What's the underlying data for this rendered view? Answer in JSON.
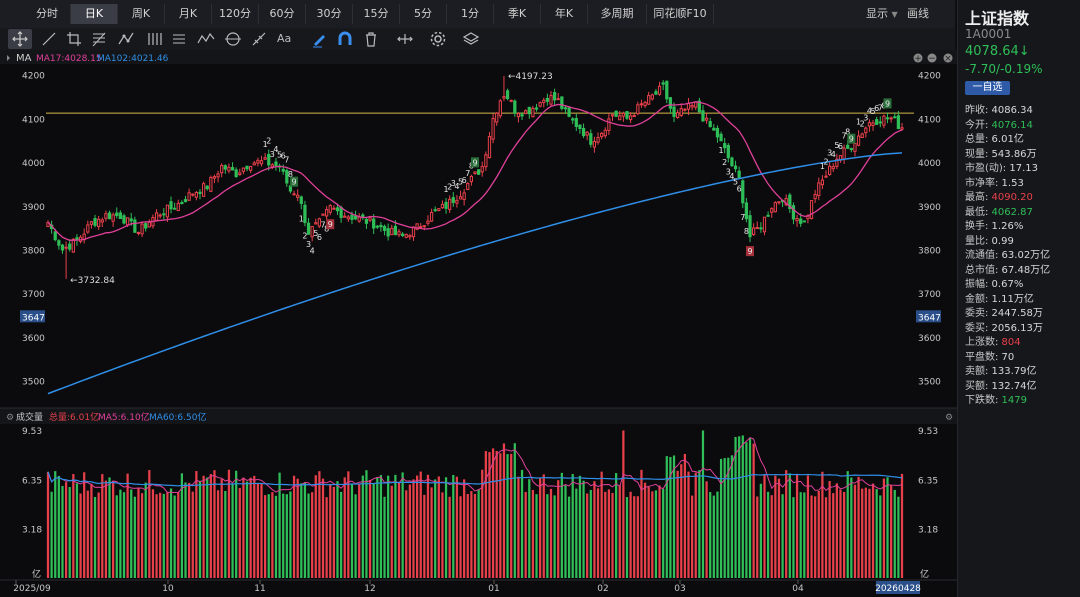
{
  "period_tabs": [
    "分时",
    "日K",
    "周K",
    "月K",
    "120分",
    "60分",
    "30分",
    "15分",
    "5分",
    "1分",
    "季K",
    "年K",
    "多周期",
    "同花顺F10"
  ],
  "active_tab": 1,
  "toolbar_right": {
    "display": "显示",
    "draw": "画线"
  },
  "main_chart": {
    "indicator_label": "MA",
    "ma1_label": "MA17:4028.15",
    "ma2_label": "MA102:4021.46",
    "y_ticks": [
      "4200",
      "4100",
      "4000",
      "3900",
      "3800",
      "3700",
      "3600",
      "3500"
    ],
    "current_tag": "3647",
    "high_label": "4197.23",
    "low_label": "3732.84"
  },
  "volume_chart": {
    "title": "成交量",
    "total_label": "总量:6.01亿",
    "ma5_label": "MA5:6.10亿",
    "ma60_label": "MA60:6.50亿",
    "y_ticks": [
      "9.53",
      "6.35",
      "3.18"
    ],
    "unit": "亿"
  },
  "x_labels": [
    "2025/09",
    "10",
    "11",
    "12",
    "01",
    "02",
    "03",
    "04"
  ],
  "x_end_label": "20260428",
  "seq_markers": [
    "1",
    "2",
    "3",
    "4",
    "5",
    "6",
    "7",
    "8",
    "9"
  ],
  "panel": {
    "name": "上证指数",
    "code": "1A0001",
    "price": "4078.64",
    "arrow": "↓",
    "change": "-7.70/-0.19%",
    "watch_button": "一自选",
    "stats": [
      {
        "label": "昨收:",
        "value": "4086.34",
        "tone": ""
      },
      {
        "label": "今开:",
        "value": "4076.14",
        "tone": "dn"
      },
      {
        "label": "总量:",
        "value": "6.01亿",
        "tone": ""
      },
      {
        "label": "现量:",
        "value": "543.86万",
        "tone": ""
      },
      {
        "label": "市盈(动):",
        "value": "17.13",
        "tone": ""
      },
      {
        "label": "市净率:",
        "value": "1.53",
        "tone": ""
      },
      {
        "label": "最高:",
        "value": "4090.20",
        "tone": "up"
      },
      {
        "label": "最低:",
        "value": "4062.87",
        "tone": "dn"
      },
      {
        "label": "换手:",
        "value": "1.26%",
        "tone": ""
      },
      {
        "label": "量比:",
        "value": "0.99",
        "tone": ""
      },
      {
        "label": "流通值:",
        "value": "63.02万亿",
        "tone": ""
      },
      {
        "label": "总市值:",
        "value": "67.48万亿",
        "tone": ""
      },
      {
        "label": "振幅:",
        "value": "0.67%",
        "tone": ""
      },
      {
        "label": "金额:",
        "value": "1.11万亿",
        "tone": ""
      },
      {
        "label": "委卖:",
        "value": "2447.58万",
        "tone": ""
      },
      {
        "label": "委买:",
        "value": "2056.13万",
        "tone": ""
      },
      {
        "label": "上涨数:",
        "value": "804",
        "tone": "up"
      },
      {
        "label": "平盘数:",
        "value": "70",
        "tone": ""
      },
      {
        "label": "卖额:",
        "value": "133.79亿",
        "tone": ""
      },
      {
        "label": "买额:",
        "value": "132.74亿",
        "tone": ""
      },
      {
        "label": "下跌数:",
        "value": "1479",
        "tone": "dn"
      }
    ]
  },
  "colors": {
    "up": "#e8404a",
    "down": "#2fbe58",
    "ma_short": "#e0409a",
    "ma_long": "#2f8fe8",
    "hline": "#d8b84a"
  },
  "chart_data": {
    "type": "candlestick",
    "ylim": [
      3460,
      4220
    ],
    "volume_ylim": [
      0,
      9.53
    ],
    "high": 4197.23,
    "low": 3732.84,
    "ma_labels": {
      "MA17": 4028.15,
      "MA102": 4021.46
    },
    "last_close": 4078.64,
    "anchors_close": [
      [
        0,
        3862
      ],
      [
        4,
        3800
      ],
      [
        8,
        3820
      ],
      [
        12,
        3860
      ],
      [
        16,
        3878
      ],
      [
        20,
        3878
      ],
      [
        25,
        3840
      ],
      [
        30,
        3880
      ],
      [
        35,
        3898
      ],
      [
        40,
        3930
      ],
      [
        44,
        3945
      ],
      [
        48,
        3990
      ],
      [
        52,
        3975
      ],
      [
        56,
        4000
      ],
      [
        60,
        4000
      ],
      [
        64,
        3990
      ],
      [
        67,
        3935
      ],
      [
        69,
        3930
      ],
      [
        72,
        3840
      ],
      [
        75,
        3860
      ],
      [
        78,
        3895
      ],
      [
        82,
        3880
      ],
      [
        86,
        3870
      ],
      [
        90,
        3860
      ],
      [
        94,
        3840
      ],
      [
        98,
        3830
      ],
      [
        102,
        3850
      ],
      [
        106,
        3880
      ],
      [
        110,
        3900
      ],
      [
        114,
        3930
      ],
      [
        118,
        3970
      ],
      [
        120,
        3990
      ],
      [
        123,
        4100
      ],
      [
        126,
        4165
      ],
      [
        129,
        4120
      ],
      [
        132,
        4115
      ],
      [
        135,
        4130
      ],
      [
        138,
        4150
      ],
      [
        141,
        4140
      ],
      [
        144,
        4100
      ],
      [
        147,
        4080
      ],
      [
        150,
        4050
      ],
      [
        153,
        4070
      ],
      [
        156,
        4110
      ],
      [
        160,
        4100
      ],
      [
        164,
        4130
      ],
      [
        167,
        4150
      ],
      [
        170,
        4170
      ],
      [
        173,
        4100
      ],
      [
        176,
        4120
      ],
      [
        179,
        4130
      ],
      [
        182,
        4090
      ],
      [
        185,
        4060
      ],
      [
        188,
        4010
      ],
      [
        191,
        3960
      ],
      [
        194,
        3830
      ],
      [
        197,
        3855
      ],
      [
        200,
        3900
      ],
      [
        203,
        3920
      ],
      [
        206,
        3880
      ],
      [
        209,
        3860
      ],
      [
        212,
        3930
      ],
      [
        215,
        3970
      ],
      [
        218,
        4010
      ],
      [
        221,
        4030
      ],
      [
        224,
        4060
      ],
      [
        227,
        4090
      ],
      [
        230,
        4100
      ],
      [
        233,
        4100
      ],
      [
        236,
        4078.64
      ]
    ]
  }
}
